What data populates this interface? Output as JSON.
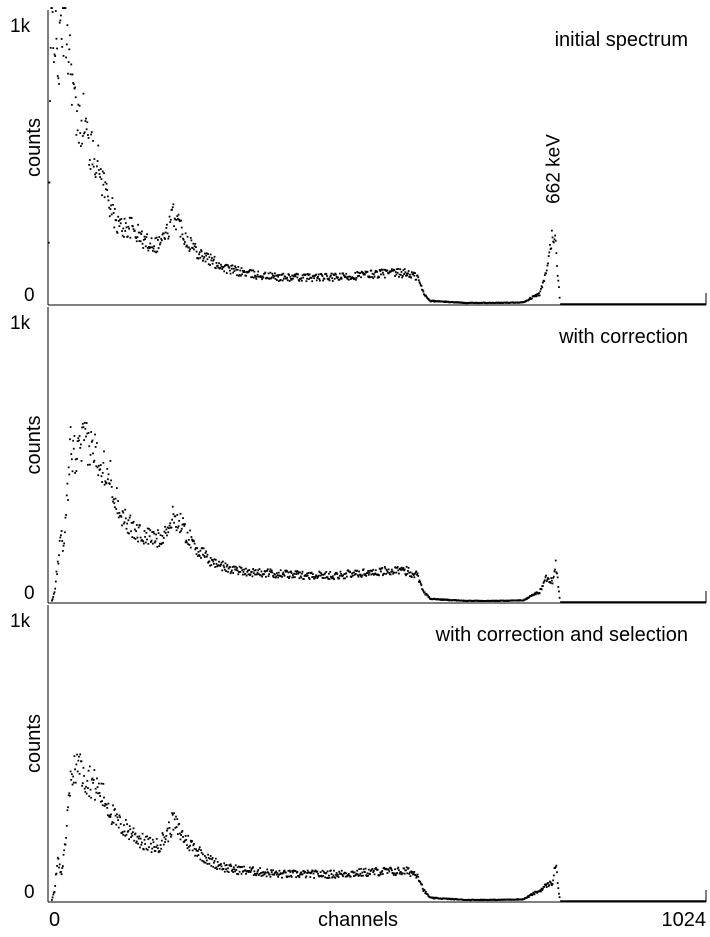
{
  "chart_data": [
    {
      "type": "scatter",
      "title": "initial spectrum",
      "ylabel": "counts",
      "xlabel": "",
      "xlim": [
        0,
        1024
      ],
      "ylim": [
        0,
        1000
      ],
      "y_ticks": [
        "0",
        "1k"
      ],
      "x_ticks": [],
      "annotations": [
        {
          "text": "662 keV",
          "x": 796,
          "y": 300
        }
      ],
      "grid": false,
      "color": "#000000",
      "profile": [
        [
          0,
          0
        ],
        [
          5,
          1100
        ],
        [
          15,
          860
        ],
        [
          25,
          1050
        ],
        [
          35,
          890
        ],
        [
          45,
          640
        ],
        [
          55,
          680
        ],
        [
          65,
          560
        ],
        [
          75,
          530
        ],
        [
          85,
          450
        ],
        [
          95,
          380
        ],
        [
          105,
          300
        ],
        [
          115,
          280
        ],
        [
          130,
          280
        ],
        [
          150,
          230
        ],
        [
          170,
          220
        ],
        [
          185,
          260
        ],
        [
          195,
          330
        ],
        [
          205,
          290
        ],
        [
          215,
          240
        ],
        [
          230,
          200
        ],
        [
          250,
          165
        ],
        [
          280,
          130
        ],
        [
          320,
          110
        ],
        [
          360,
          100
        ],
        [
          400,
          100
        ],
        [
          450,
          100
        ],
        [
          520,
          115
        ],
        [
          560,
          115
        ],
        [
          575,
          100
        ],
        [
          585,
          40
        ],
        [
          595,
          15
        ],
        [
          650,
          8
        ],
        [
          700,
          8
        ],
        [
          740,
          10
        ],
        [
          755,
          30
        ],
        [
          765,
          40
        ],
        [
          775,
          110
        ],
        [
          785,
          260
        ],
        [
          790,
          220
        ],
        [
          794,
          90
        ],
        [
          797,
          0
        ],
        [
          1024,
          0
        ]
      ]
    },
    {
      "type": "scatter",
      "title": "with correction",
      "ylabel": "counts",
      "xlabel": "",
      "xlim": [
        0,
        1024
      ],
      "ylim": [
        0,
        1000
      ],
      "y_ticks": [
        "0",
        "1k"
      ],
      "x_ticks": [],
      "annotations": [],
      "grid": false,
      "color": "#000000",
      "profile": [
        [
          0,
          0
        ],
        [
          5,
          0
        ],
        [
          10,
          40
        ],
        [
          15,
          140
        ],
        [
          20,
          240
        ],
        [
          25,
          200
        ],
        [
          35,
          560
        ],
        [
          45,
          520
        ],
        [
          55,
          580
        ],
        [
          65,
          560
        ],
        [
          75,
          540
        ],
        [
          85,
          500
        ],
        [
          95,
          470
        ],
        [
          105,
          380
        ],
        [
          115,
          320
        ],
        [
          130,
          270
        ],
        [
          150,
          240
        ],
        [
          170,
          230
        ],
        [
          185,
          260
        ],
        [
          195,
          310
        ],
        [
          205,
          290
        ],
        [
          215,
          250
        ],
        [
          230,
          200
        ],
        [
          250,
          155
        ],
        [
          280,
          125
        ],
        [
          320,
          110
        ],
        [
          360,
          105
        ],
        [
          400,
          100
        ],
        [
          450,
          100
        ],
        [
          520,
          115
        ],
        [
          560,
          115
        ],
        [
          575,
          100
        ],
        [
          585,
          40
        ],
        [
          595,
          15
        ],
        [
          650,
          8
        ],
        [
          700,
          8
        ],
        [
          740,
          10
        ],
        [
          755,
          30
        ],
        [
          765,
          40
        ],
        [
          775,
          90
        ],
        [
          785,
          80
        ],
        [
          790,
          150
        ],
        [
          794,
          60
        ],
        [
          797,
          0
        ],
        [
          1024,
          0
        ]
      ]
    },
    {
      "type": "scatter",
      "title": "with correction and selection",
      "ylabel": "counts",
      "xlabel": "channels",
      "xlim": [
        0,
        1024
      ],
      "ylim": [
        0,
        1000
      ],
      "y_ticks": [
        "0",
        "1k"
      ],
      "x_ticks": [
        "0",
        "1024"
      ],
      "annotations": [],
      "grid": false,
      "color": "#000000",
      "profile": [
        [
          0,
          0
        ],
        [
          5,
          0
        ],
        [
          10,
          40
        ],
        [
          15,
          160
        ],
        [
          20,
          100
        ],
        [
          25,
          170
        ],
        [
          35,
          420
        ],
        [
          45,
          510
        ],
        [
          55,
          450
        ],
        [
          65,
          440
        ],
        [
          75,
          410
        ],
        [
          85,
          380
        ],
        [
          95,
          340
        ],
        [
          105,
          290
        ],
        [
          115,
          270
        ],
        [
          130,
          250
        ],
        [
          150,
          210
        ],
        [
          170,
          200
        ],
        [
          185,
          240
        ],
        [
          195,
          290
        ],
        [
          205,
          250
        ],
        [
          215,
          220
        ],
        [
          230,
          190
        ],
        [
          250,
          150
        ],
        [
          280,
          120
        ],
        [
          320,
          110
        ],
        [
          360,
          100
        ],
        [
          400,
          100
        ],
        [
          450,
          100
        ],
        [
          520,
          110
        ],
        [
          560,
          110
        ],
        [
          575,
          100
        ],
        [
          585,
          40
        ],
        [
          595,
          15
        ],
        [
          650,
          8
        ],
        [
          700,
          8
        ],
        [
          740,
          10
        ],
        [
          755,
          30
        ],
        [
          765,
          40
        ],
        [
          775,
          60
        ],
        [
          785,
          70
        ],
        [
          790,
          140
        ],
        [
          794,
          50
        ],
        [
          797,
          0
        ],
        [
          1024,
          0
        ]
      ]
    }
  ]
}
